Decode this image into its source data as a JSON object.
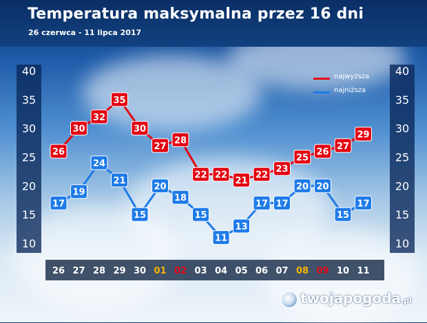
{
  "title": "Temperatura maksymalna przez 16 dni",
  "subtitle": "26 czerwca - 11 lipca 2017",
  "logo": {
    "text": "twojapogoda",
    "tld": ".pl"
  },
  "colors": {
    "high": "#e30613",
    "low": "#1e7be8",
    "weekend_saturday": "#f7b500",
    "weekend_sunday": "#e30613",
    "weekday": "#ffffff"
  },
  "chart_data": {
    "type": "line",
    "title": "Temperatura maksymalna przez 16 dni",
    "subtitle": "26 czerwca - 11 lipca 2017",
    "categories": [
      "26",
      "27",
      "28",
      "29",
      "30",
      "01",
      "02",
      "03",
      "04",
      "05",
      "06",
      "07",
      "08",
      "09",
      "10",
      "11"
    ],
    "category_styles": [
      "weekday",
      "weekday",
      "weekday",
      "weekday",
      "weekday",
      "saturday",
      "sunday",
      "weekday",
      "weekday",
      "weekday",
      "weekday",
      "weekday",
      "saturday",
      "sunday",
      "weekday",
      "weekday"
    ],
    "ylim": [
      10,
      40
    ],
    "yticks": [
      10,
      15,
      20,
      25,
      30,
      35,
      40
    ],
    "legend_position": "top-right",
    "series": [
      {
        "name": "najwyższa",
        "color": "#e30613",
        "values": [
          26,
          30,
          32,
          35,
          30,
          27,
          28,
          22,
          22,
          21,
          22,
          23,
          25,
          26,
          27,
          29
        ]
      },
      {
        "name": "najniższa",
        "color": "#1e7be8",
        "values": [
          17,
          19,
          24,
          21,
          15,
          20,
          18,
          15,
          11,
          13,
          17,
          17,
          20,
          20,
          15,
          17
        ]
      }
    ]
  }
}
